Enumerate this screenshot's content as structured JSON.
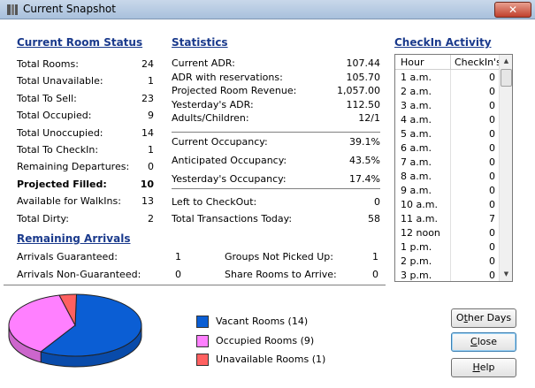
{
  "window": {
    "title": "Current Snapshot",
    "close_glyph": "✕"
  },
  "room_status": {
    "heading": "Current Room Status",
    "rows": [
      {
        "label": "Total Rooms:",
        "value": "24"
      },
      {
        "label": "Total Unavailable:",
        "value": "1"
      },
      {
        "label": "Total To Sell:",
        "value": "23"
      },
      {
        "label": "Total Occupied:",
        "value": "9"
      },
      {
        "label": "Total Unoccupied:",
        "value": "14"
      },
      {
        "label": "Total To CheckIn:",
        "value": "1"
      },
      {
        "label": "Remaining Departures:",
        "value": "0"
      },
      {
        "label": "Projected Filled:",
        "value": "10"
      },
      {
        "label": "Available for WalkIns:",
        "value": "13"
      },
      {
        "label": "Total Dirty:",
        "value": "2"
      }
    ]
  },
  "statistics": {
    "heading": "Statistics",
    "group1": [
      {
        "label": "Current ADR:",
        "value": "107.44"
      },
      {
        "label": "ADR with reservations:",
        "value": "105.70"
      },
      {
        "label": "Projected Room Revenue:",
        "value": "1,057.00"
      },
      {
        "label": "Yesterday's ADR:",
        "value": "112.50"
      },
      {
        "label": "Adults/Children:",
        "value": "12/1"
      }
    ],
    "group2": [
      {
        "label": "Current Occupancy:",
        "value": "39.1%"
      },
      {
        "label": "Anticipated Occupancy:",
        "value": "43.5%"
      },
      {
        "label": "Yesterday's Occupancy:",
        "value": "17.4%"
      }
    ],
    "group3": [
      {
        "label": "Left to CheckOut:",
        "value": "0"
      },
      {
        "label": "Total Transactions Today:",
        "value": "58"
      }
    ]
  },
  "checkin": {
    "heading": "CheckIn Activity",
    "col_hour": "Hour",
    "col_count": "CheckIn's",
    "rows": [
      {
        "hour": "1 a.m.",
        "count": "0"
      },
      {
        "hour": "2 a.m.",
        "count": "0"
      },
      {
        "hour": "3 a.m.",
        "count": "0"
      },
      {
        "hour": "4 a.m.",
        "count": "0"
      },
      {
        "hour": "5 a.m.",
        "count": "0"
      },
      {
        "hour": "6 a.m.",
        "count": "0"
      },
      {
        "hour": "7 a.m.",
        "count": "0"
      },
      {
        "hour": "8 a.m.",
        "count": "0"
      },
      {
        "hour": "9 a.m.",
        "count": "0"
      },
      {
        "hour": "10 a.m.",
        "count": "0"
      },
      {
        "hour": "11 a.m.",
        "count": "7"
      },
      {
        "hour": "12 noon",
        "count": "0"
      },
      {
        "hour": "1 p.m.",
        "count": "0"
      },
      {
        "hour": "2 p.m.",
        "count": "0"
      },
      {
        "hour": "3 p.m.",
        "count": "0"
      }
    ]
  },
  "arrivals": {
    "heading": "Remaining Arrivals",
    "left": [
      {
        "label": "Arrivals Guaranteed:",
        "value": "1"
      },
      {
        "label": "Arrivals Non-Guaranteed:",
        "value": "0"
      }
    ],
    "right": [
      {
        "label": "Groups Not Picked Up:",
        "value": "1"
      },
      {
        "label": "Share Rooms to Arrive:",
        "value": "0"
      }
    ]
  },
  "chart_data": {
    "type": "pie",
    "title": "",
    "slices": [
      {
        "label": "Vacant Rooms (14)",
        "value": 14,
        "color": "#0b5ed4"
      },
      {
        "label": "Occupied Rooms (9)",
        "value": 9,
        "color": "#ff80ff"
      },
      {
        "label": "Unavailable Rooms (1)",
        "value": 1,
        "color": "#ff6060"
      }
    ]
  },
  "buttons": {
    "other_days": {
      "pre": "O",
      "u": "t",
      "post": "her Days"
    },
    "close": {
      "pre": "",
      "u": "C",
      "post": "lose"
    },
    "help": {
      "pre": "",
      "u": "H",
      "post": "elp"
    }
  }
}
